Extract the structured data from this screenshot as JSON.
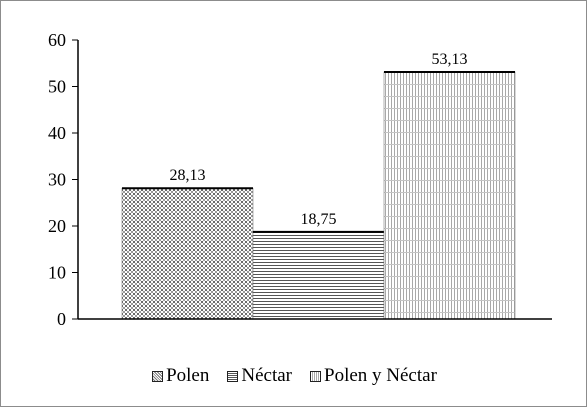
{
  "chart_data": {
    "type": "bar",
    "categories": [
      "Polen",
      "Néctar",
      "Polen y Néctar"
    ],
    "values": [
      28.13,
      18.75,
      53.13
    ],
    "value_labels": [
      "28,13",
      "18,75",
      "53,13"
    ],
    "ylim": [
      0,
      60
    ],
    "yticks": [
      0,
      10,
      20,
      30,
      40,
      50,
      60
    ],
    "ytick_labels": [
      "0",
      "10",
      "20",
      "30",
      "40",
      "50",
      "60"
    ],
    "legend": {
      "position": "bottom",
      "entries": [
        "Polen",
        "Néctar",
        "Polen y Néctar"
      ]
    },
    "grid": false,
    "title": "",
    "xlabel": "",
    "ylabel": ""
  }
}
